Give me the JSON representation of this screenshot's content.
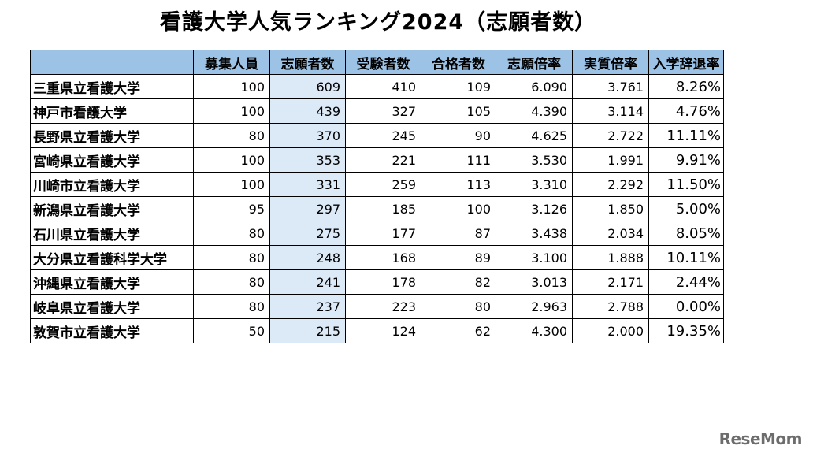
{
  "title": "看護大学人気ランキング2024（志願者数）",
  "chart_data": {
    "type": "table",
    "title": "看護大学人気ランキング2024（志願者数）",
    "columns": [
      "",
      "募集人員",
      "志願者数",
      "受験者数",
      "合格者数",
      "志願倍率",
      "実質倍率",
      "入学辞退率"
    ],
    "rows": [
      [
        "三重県立看護大学",
        "100",
        "609",
        "410",
        "109",
        "6.090",
        "3.761",
        "8.26%"
      ],
      [
        "神戸市看護大学",
        "100",
        "439",
        "327",
        "105",
        "4.390",
        "3.114",
        "4.76%"
      ],
      [
        "長野県立看護大学",
        "80",
        "370",
        "245",
        "90",
        "4.625",
        "2.722",
        "11.11%"
      ],
      [
        "宮崎県立看護大学",
        "100",
        "353",
        "221",
        "111",
        "3.530",
        "1.991",
        "9.91%"
      ],
      [
        "川崎市立看護大学",
        "100",
        "331",
        "259",
        "113",
        "3.310",
        "2.292",
        "11.50%"
      ],
      [
        "新潟県立看護大学",
        "95",
        "297",
        "185",
        "100",
        "3.126",
        "1.850",
        "5.00%"
      ],
      [
        "石川県立看護大学",
        "80",
        "275",
        "177",
        "87",
        "3.438",
        "2.034",
        "8.05%"
      ],
      [
        "大分県立看護科学大学",
        "80",
        "248",
        "168",
        "89",
        "3.100",
        "1.888",
        "10.11%"
      ],
      [
        "沖縄県立看護大学",
        "80",
        "241",
        "178",
        "82",
        "3.013",
        "2.171",
        "2.44%"
      ],
      [
        "岐阜県立看護大学",
        "80",
        "237",
        "223",
        "80",
        "2.963",
        "2.788",
        "0.00%"
      ],
      [
        "敦賀市立看護大学",
        "50",
        "215",
        "124",
        "62",
        "4.300",
        "2.000",
        "19.35%"
      ]
    ],
    "highlight_column": 2,
    "colors": {
      "header": "#9cc2e5",
      "highlight": "#dce9f6",
      "border": "#000000"
    }
  },
  "logo": "ReseMom"
}
